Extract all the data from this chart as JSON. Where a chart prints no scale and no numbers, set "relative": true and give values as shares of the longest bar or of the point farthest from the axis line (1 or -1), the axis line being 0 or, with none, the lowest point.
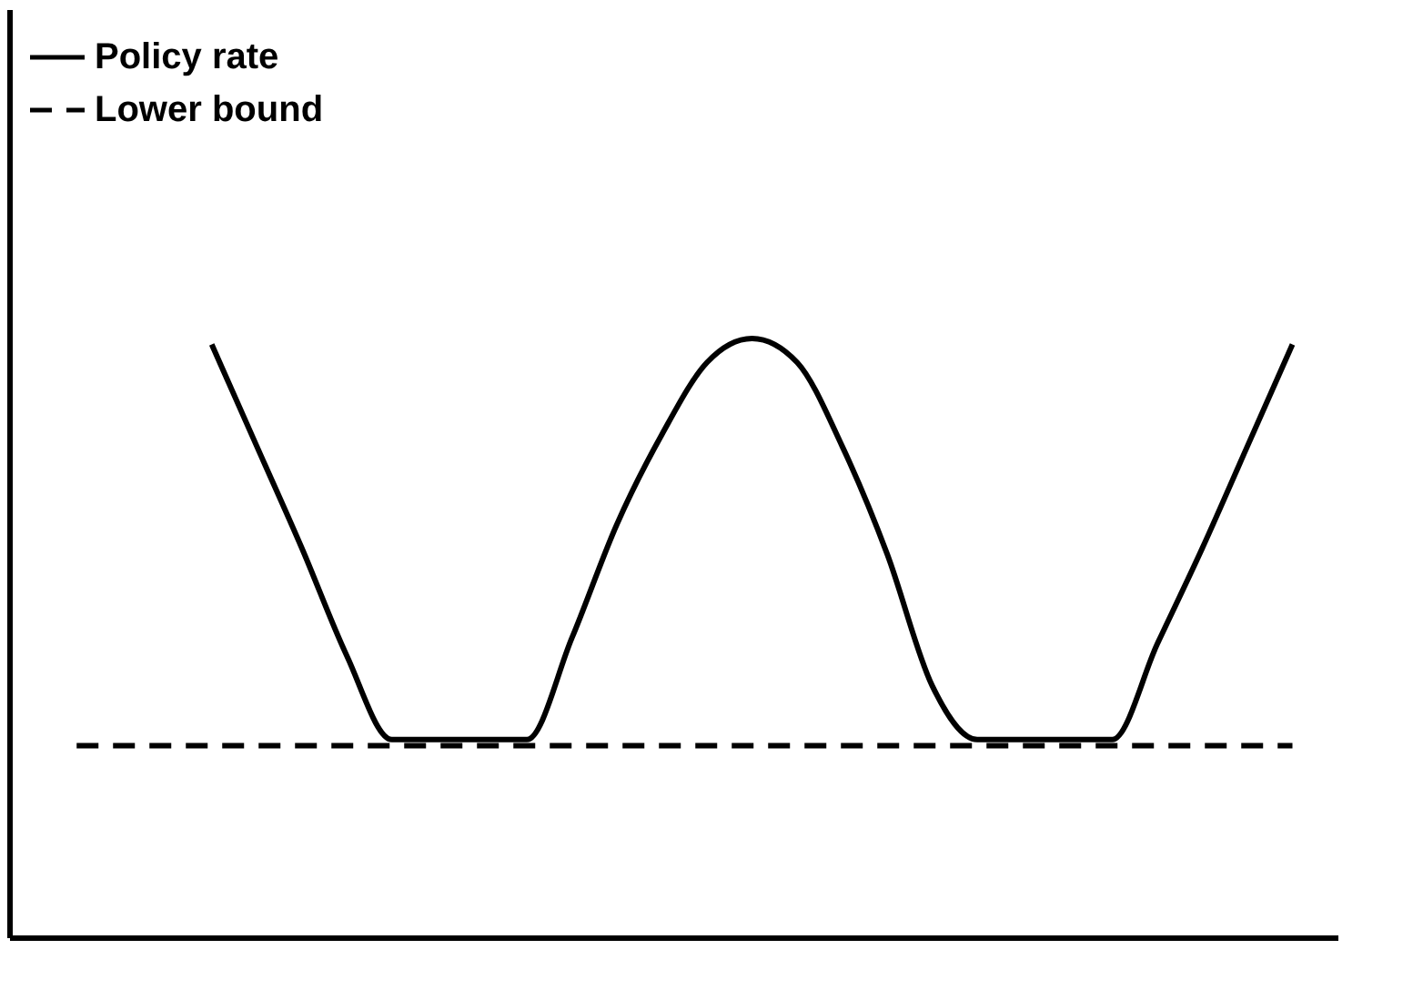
{
  "chart_data": {
    "type": "line",
    "relative": true,
    "legend": "top left",
    "grid": false,
    "tick_labels": false,
    "marker": "none",
    "categories": [
      null,
      null,
      null,
      null,
      null,
      null,
      null,
      null,
      null,
      null,
      null,
      null,
      null,
      null,
      null,
      null,
      null,
      null,
      null,
      null,
      null,
      null,
      null,
      null,
      null,
      null,
      null,
      null
    ],
    "series": [
      {
        "name": "Policy rate",
        "color": "#000000",
        "line_style": "solid",
        "values": [
          null,
          null,
          null,
          0.99,
          0.82,
          0.65,
          0.47,
          0.33,
          0.33,
          0.33,
          0.33,
          0.5,
          0.69,
          0.84,
          0.96,
          1,
          0.96,
          0.82,
          0.64,
          0.42,
          0.33,
          0.33,
          0.33,
          0.33,
          0.49,
          0.65,
          0.82,
          0.99
        ]
      },
      {
        "name": "Lower bound",
        "color": "#000000",
        "line_style": "dashed",
        "values": [
          0.32,
          0.32,
          0.32,
          0.32,
          0.32,
          0.32,
          0.32,
          0.32,
          0.32,
          0.32,
          0.32,
          0.32,
          0.32,
          0.32,
          0.32,
          0.32,
          0.32,
          0.32,
          0.32,
          0.32,
          0.32,
          0.32,
          0.32,
          0.32,
          0.32,
          0.32,
          0.32,
          0.32
        ]
      }
    ]
  }
}
